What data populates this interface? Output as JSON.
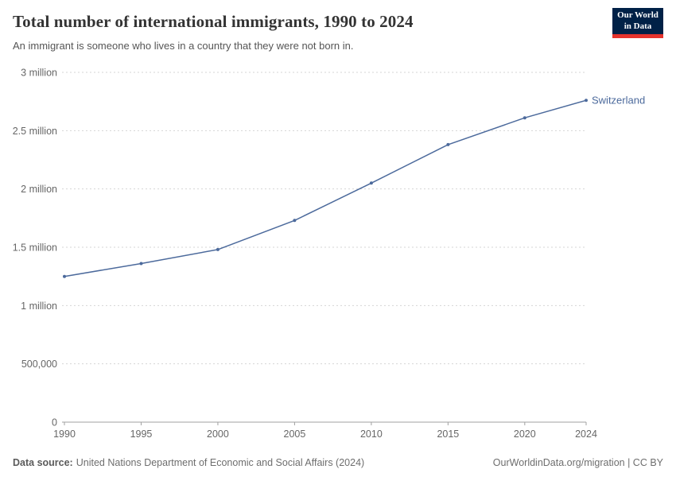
{
  "header": {
    "title": "Total number of international immigrants, 1990 to 2024",
    "subtitle": "An immigrant is someone who lives in a country that they were not born in.",
    "logo": {
      "line1": "Our World",
      "line2": "in Data",
      "bg_color": "#002147",
      "accent_color": "#e5332d"
    }
  },
  "chart_data": {
    "type": "line",
    "title": "Total number of international immigrants, 1990 to 2024",
    "subtitle": "An immigrant is someone who lives in a country that they were not born in.",
    "x": [
      1990,
      1995,
      2000,
      2005,
      2010,
      2015,
      2020,
      2024
    ],
    "series": [
      {
        "name": "Switzerland",
        "values": [
          1250000,
          1360000,
          1480000,
          1730000,
          2050000,
          2380000,
          2610000,
          2760000
        ],
        "color": "#4c6a9c"
      }
    ],
    "xlabel": "",
    "ylabel": "",
    "ylim": [
      0,
      3000000
    ],
    "xlim": [
      1990,
      2024
    ],
    "yticks": [
      {
        "value": 0,
        "label": "0"
      },
      {
        "value": 500000,
        "label": "500,000"
      },
      {
        "value": 1000000,
        "label": "1 million"
      },
      {
        "value": 1500000,
        "label": "1.5 million"
      },
      {
        "value": 2000000,
        "label": "2 million"
      },
      {
        "value": 2500000,
        "label": "2.5 million"
      },
      {
        "value": 3000000,
        "label": "3 million"
      }
    ],
    "xticks": [
      {
        "value": 1990,
        "label": "1990"
      },
      {
        "value": 1995,
        "label": "1995"
      },
      {
        "value": 2000,
        "label": "2000"
      },
      {
        "value": 2005,
        "label": "2005"
      },
      {
        "value": 2010,
        "label": "2010"
      },
      {
        "value": 2015,
        "label": "2015"
      },
      {
        "value": 2020,
        "label": "2020"
      },
      {
        "value": 2024,
        "label": "2024"
      }
    ],
    "grid": "dashed-horizontal",
    "legend_position": "end-of-line-label",
    "end_label": "Switzerland"
  },
  "footer": {
    "datasource_label": "Data source:",
    "datasource_text": "United Nations Department of Economic and Social Affairs (2024)",
    "link_text": "OurWorldinData.org/migration | CC BY"
  },
  "colors": {
    "line": "#4c6a9c",
    "grid": "#d5d5d5",
    "axis": "#a0a0a0",
    "tick_text": "#666666"
  }
}
